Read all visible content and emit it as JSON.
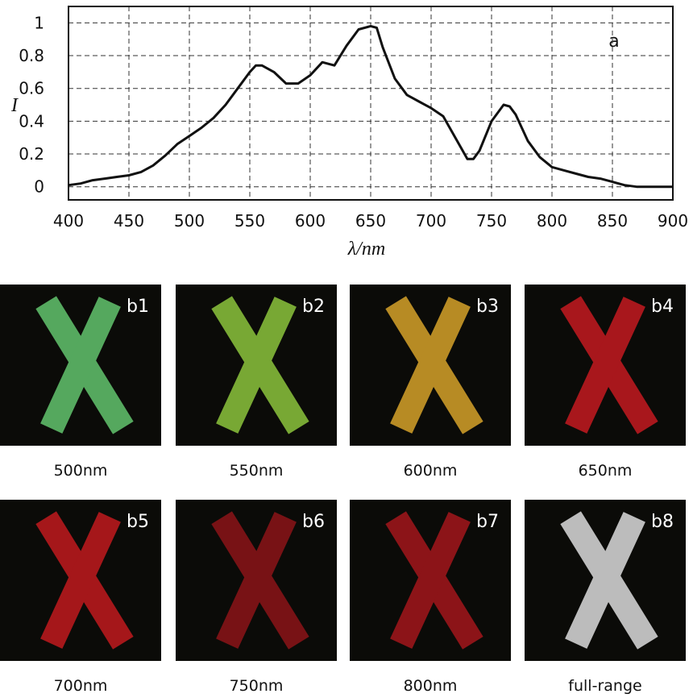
{
  "chart_data": {
    "type": "line",
    "annotation": "a",
    "y_label": "I",
    "x_label": "λ/nm",
    "x": [
      400,
      410,
      420,
      430,
      440,
      450,
      460,
      470,
      480,
      490,
      500,
      510,
      520,
      530,
      540,
      550,
      555,
      560,
      570,
      580,
      590,
      600,
      610,
      620,
      630,
      640,
      650,
      655,
      660,
      670,
      680,
      690,
      700,
      710,
      720,
      730,
      735,
      740,
      750,
      760,
      765,
      770,
      780,
      790,
      800,
      810,
      820,
      830,
      840,
      850,
      860,
      870,
      880,
      890,
      900
    ],
    "values": [
      0.01,
      0.02,
      0.04,
      0.05,
      0.06,
      0.07,
      0.09,
      0.13,
      0.19,
      0.26,
      0.31,
      0.36,
      0.42,
      0.5,
      0.6,
      0.7,
      0.74,
      0.74,
      0.7,
      0.63,
      0.63,
      0.68,
      0.76,
      0.74,
      0.86,
      0.96,
      0.98,
      0.97,
      0.85,
      0.66,
      0.56,
      0.52,
      0.48,
      0.43,
      0.3,
      0.17,
      0.17,
      0.22,
      0.4,
      0.5,
      0.49,
      0.44,
      0.28,
      0.18,
      0.12,
      0.1,
      0.08,
      0.06,
      0.05,
      0.03,
      0.01,
      0,
      0,
      0,
      0
    ],
    "color": "#111111",
    "xlim": [
      400,
      900
    ],
    "xticks": [
      400,
      450,
      500,
      550,
      600,
      650,
      700,
      750,
      800,
      850,
      900
    ],
    "ylim": [
      -0.08,
      1.1
    ],
    "yticks": [
      0,
      0.2,
      0.4,
      0.6,
      0.8,
      1
    ],
    "grid": true
  },
  "panels": [
    {
      "tag": "b1",
      "caption": "500nm",
      "color": "#62c46e"
    },
    {
      "tag": "b2",
      "caption": "550nm",
      "color": "#8cc43c"
    },
    {
      "tag": "b3",
      "caption": "600nm",
      "color": "#d6a22a"
    },
    {
      "tag": "b4",
      "caption": "650nm",
      "color": "#c41a20"
    },
    {
      "tag": "b5",
      "caption": "700nm",
      "color": "#c01a1e"
    },
    {
      "tag": "b6",
      "caption": "750nm",
      "color": "#8c1418"
    },
    {
      "tag": "b7",
      "caption": "800nm",
      "color": "#a3161b"
    },
    {
      "tag": "b8",
      "caption": "full-range",
      "color": "#dcdcdc"
    }
  ]
}
